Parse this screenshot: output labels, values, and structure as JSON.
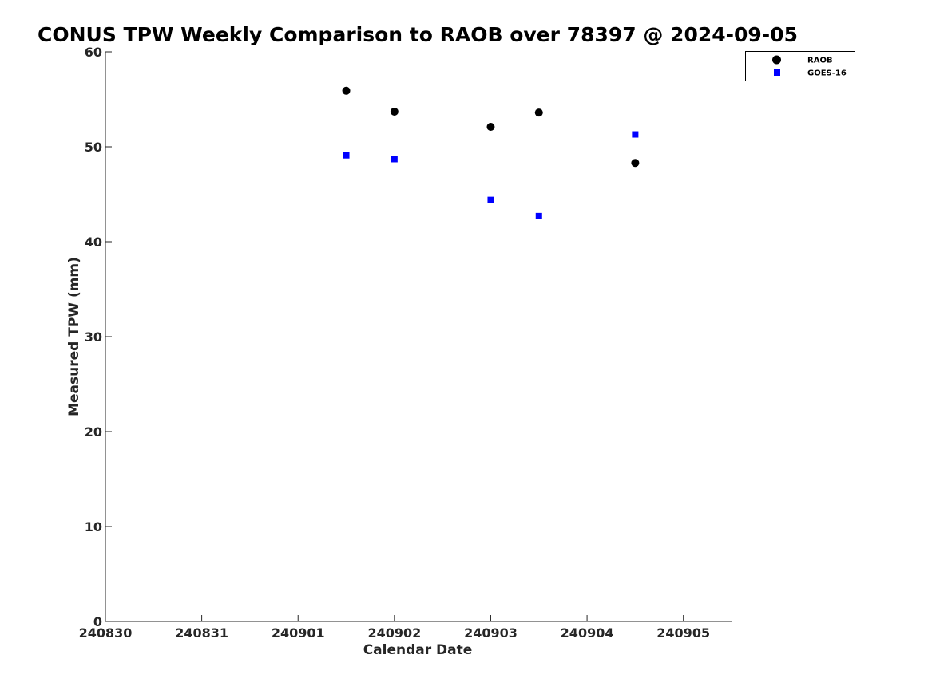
{
  "chart_data": {
    "type": "scatter",
    "title": "CONUS TPW Weekly Comparison to RAOB over 78397 @ 2024-09-05",
    "xlabel": "Calendar Date",
    "ylabel": "Measured TPW (mm)",
    "x_tick_labels": [
      "240830",
      "240831",
      "240901",
      "240902",
      "240903",
      "240904",
      "240905"
    ],
    "y_tick_labels": [
      "0",
      "10",
      "20",
      "30",
      "40",
      "50",
      "60"
    ],
    "xlim": [
      "2024-08-30",
      "2024-09-05 12:00"
    ],
    "ylim": [
      0,
      60
    ],
    "legend_position": "top-right",
    "series": [
      {
        "name": "RAOB",
        "marker": "circle",
        "color": "#000000",
        "x": [
          "2024-09-01 12:00",
          "2024-09-02 00:00",
          "2024-09-03 00:00",
          "2024-09-03 12:00",
          "2024-09-04 12:00"
        ],
        "y": [
          55.9,
          53.7,
          52.1,
          53.6,
          48.3
        ]
      },
      {
        "name": "GOES-16",
        "marker": "square",
        "color": "#0000ff",
        "x": [
          "2024-09-01 12:00",
          "2024-09-02 00:00",
          "2024-09-03 00:00",
          "2024-09-03 12:00",
          "2024-09-04 12:00"
        ],
        "y": [
          49.1,
          48.7,
          44.4,
          42.7,
          51.3
        ]
      }
    ]
  }
}
